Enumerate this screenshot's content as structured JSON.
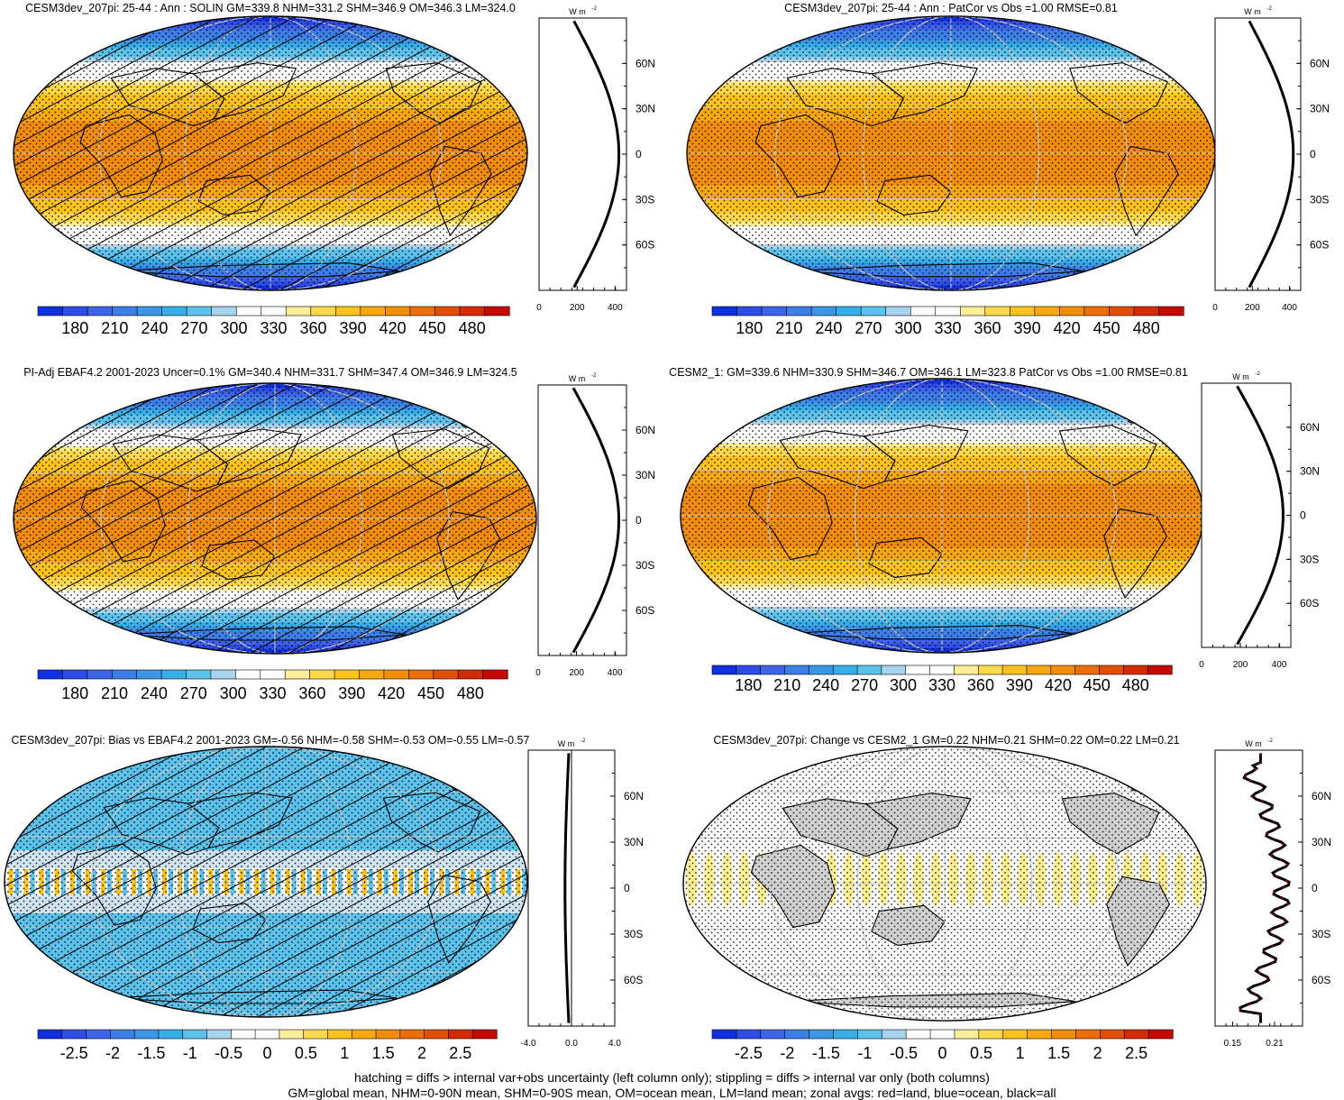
{
  "footer": {
    "line1": "hatching = diffs > internal var+obs uncertainty (left column only); stippling = diffs > internal var only (both columns)",
    "line2": "GM=global mean, NHM=0-90N mean, SHM=0-90S mean, OM=ocean mean, LM=land mean; zonal avgs: red=land, blue=ocean, black=all"
  },
  "chart_data": [
    {
      "type": "heatmap",
      "title": "CESM3dev_207pi: 25-44 : Ann : SOLIN GM=339.8 NHM=331.2 SHM=346.9 OM=346.3 LM=324.0",
      "field": "solin",
      "colorbar_ticks": [
        "180",
        "210",
        "240",
        "270",
        "300",
        "330",
        "360",
        "390",
        "420",
        "450",
        "480"
      ],
      "zonal_profile": {
        "unit": "W m",
        "unit_exp": "-2",
        "x_ticks": [
          "0",
          "200",
          "400"
        ],
        "xlim": [
          0,
          460
        ],
        "lat_ticks": [
          "60N",
          "30N",
          "0",
          "30S",
          "60S"
        ],
        "shape": "insolation",
        "equator_value": 420,
        "pole_value": 175
      },
      "hatching": true,
      "stippling": true
    },
    {
      "type": "heatmap",
      "title": "CESM3dev_207pi: 25-44 : Ann : PatCor vs Obs =1.00 RMSE=0.81",
      "field": "solin",
      "colorbar_ticks": [
        "180",
        "210",
        "240",
        "270",
        "300",
        "330",
        "360",
        "390",
        "420",
        "450",
        "480"
      ],
      "zonal_profile": {
        "unit": "W m",
        "unit_exp": "-2",
        "x_ticks": [
          "0",
          "200",
          "400"
        ],
        "xlim": [
          0,
          460
        ],
        "lat_ticks": [
          "60N",
          "30N",
          "0",
          "30S",
          "60S"
        ],
        "shape": "insolation",
        "equator_value": 420,
        "pole_value": 175
      },
      "hatching": false,
      "stippling": true
    },
    {
      "type": "heatmap",
      "title": "PI-Adj EBAF4.2 2001-2023 Uncer=0.1% GM=340.4 NHM=331.7 SHM=347.4 OM=346.9 LM=324.5",
      "field": "solin",
      "colorbar_ticks": [
        "180",
        "210",
        "240",
        "270",
        "300",
        "330",
        "360",
        "390",
        "420",
        "450",
        "480"
      ],
      "zonal_profile": {
        "unit": "W m",
        "unit_exp": "-2",
        "x_ticks": [
          "0",
          "200",
          "400"
        ],
        "xlim": [
          0,
          460
        ],
        "lat_ticks": [
          "60N",
          "30N",
          "0",
          "30S",
          "60S"
        ],
        "shape": "insolation",
        "equator_value": 420,
        "pole_value": 175
      },
      "hatching": true,
      "stippling": true
    },
    {
      "type": "heatmap",
      "title": "CESM2_1: GM=339.6 NHM=330.9 SHM=346.7 OM=346.1 LM=323.8 PatCor vs Obs =1.00 RMSE=0.81",
      "field": "solin",
      "colorbar_ticks": [
        "180",
        "210",
        "240",
        "270",
        "300",
        "330",
        "360",
        "390",
        "420",
        "450",
        "480"
      ],
      "zonal_profile": {
        "unit": "W m",
        "unit_exp": "-2",
        "x_ticks": [
          "0",
          "200",
          "400"
        ],
        "xlim": [
          0,
          460
        ],
        "lat_ticks": [
          "60N",
          "30N",
          "0",
          "30S",
          "60S"
        ],
        "shape": "insolation",
        "equator_value": 420,
        "pole_value": 175
      },
      "hatching": false,
      "stippling": true
    },
    {
      "type": "heatmap",
      "title": "CESM3dev_207pi: Bias vs EBAF4.2 2001-2023 GM=-0.56 NHM=-0.58 SHM=-0.53 OM=-0.55 LM=-0.57",
      "field": "bias",
      "colorbar_ticks": [
        "-2.5",
        "-2",
        "-1.5",
        "-1",
        "-0.5",
        "0",
        "0.5",
        "1",
        "1.5",
        "2",
        "2.5"
      ],
      "zonal_profile": {
        "unit": "W m",
        "unit_exp": "-2",
        "x_ticks": [
          "-4.0",
          "0.0",
          "4.0"
        ],
        "xlim": [
          -4.0,
          4.0
        ],
        "lat_ticks": [
          "60N",
          "30N",
          "0",
          "30S",
          "60S"
        ],
        "shape": "bias",
        "equator_value": -0.6,
        "pole_value": -0.5
      },
      "hatching": true,
      "stippling": true
    },
    {
      "type": "heatmap",
      "title": "CESM3dev_207pi: Change vs CESM2_1 GM=0.22 NHM=0.21 SHM=0.22 OM=0.22 LM=0.21",
      "field": "change",
      "colorbar_ticks": [
        "-2.5",
        "-2",
        "-1.5",
        "-1",
        "-0.5",
        "0",
        "0.5",
        "1",
        "1.5",
        "2",
        "2.5"
      ],
      "zonal_profile": {
        "unit": "W m",
        "unit_exp": "-2",
        "x_ticks": [
          "0.15",
          "0.21"
        ],
        "xlim": [
          0.125,
          0.25
        ],
        "lat_ticks": [
          "60N",
          "30N",
          "0",
          "30S",
          "60S"
        ],
        "shape": "change",
        "equator_value": 0.22,
        "pole_value": 0.16
      },
      "hatching": false,
      "stippling": true
    }
  ],
  "colors": {
    "palette": [
      "#1030e0",
      "#2e4ce6",
      "#3e64ea",
      "#3d7ee8",
      "#3b96e6",
      "#36aee8",
      "#5cc2ec",
      "#a6d4ee",
      "#ffffff",
      "#ffffff",
      "#ffee99",
      "#ffd84c",
      "#ffc21c",
      "#f7a811",
      "#f28c0c",
      "#eb6e0a",
      "#e24d08",
      "#d42a06",
      "#c40a02"
    ],
    "land_grey": "#d0d0d0",
    "profile_all": "#000000",
    "profile_land": "#e00000"
  }
}
